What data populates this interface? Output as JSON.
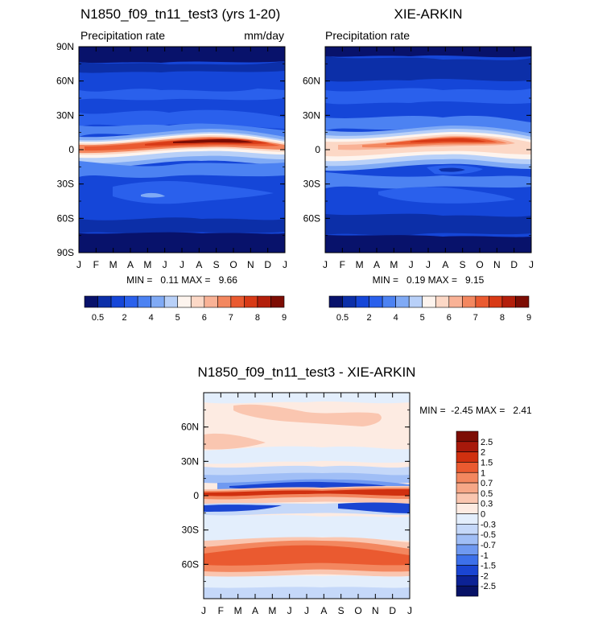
{
  "chart_data": [
    {
      "id": "model",
      "type": "heatmap",
      "title": "N1850_f09_tn11_test3 (yrs 1-20)",
      "subtitle_left": "Precipitation rate",
      "subtitle_right": "mm/day",
      "xticks": [
        "J",
        "F",
        "M",
        "A",
        "M",
        "J",
        "J",
        "A",
        "S",
        "O",
        "N",
        "D",
        "J"
      ],
      "ylabels": [
        {
          "lat": 90,
          "label": "90N"
        },
        {
          "lat": 60,
          "label": "60N"
        },
        {
          "lat": 30,
          "label": "30N"
        },
        {
          "lat": 0,
          "label": "0"
        },
        {
          "lat": -30,
          "label": "30S"
        },
        {
          "lat": -60,
          "label": "60S"
        },
        {
          "lat": -90,
          "label": "90S"
        }
      ],
      "ylim": [
        -90,
        90
      ],
      "stats_text": "MIN =   0.11 MAX =   9.66",
      "min": 0.11,
      "max": 9.66,
      "colorbar_ticks": [
        {
          "index": 1,
          "label": "0.5"
        },
        {
          "index": 3,
          "label": "2"
        },
        {
          "index": 5,
          "label": "4"
        },
        {
          "index": 7,
          "label": "5"
        },
        {
          "index": 9,
          "label": "6"
        },
        {
          "index": 11,
          "label": "7"
        },
        {
          "index": 13,
          "label": "8"
        },
        {
          "index": 15,
          "label": "9"
        }
      ]
    },
    {
      "id": "obs",
      "type": "heatmap",
      "title": "XIE-ARKIN",
      "subtitle_left": "Precipitation rate",
      "subtitle_right": "",
      "xticks": [
        "J",
        "F",
        "M",
        "A",
        "M",
        "J",
        "J",
        "A",
        "S",
        "O",
        "N",
        "D",
        "J"
      ],
      "ylabels": [
        {
          "lat": 60,
          "label": "60N"
        },
        {
          "lat": 30,
          "label": "30N"
        },
        {
          "lat": 0,
          "label": "0"
        },
        {
          "lat": -30,
          "label": "30S"
        },
        {
          "lat": -60,
          "label": "60S"
        }
      ],
      "ylim": [
        -90,
        90
      ],
      "stats_text": "MIN =   0.19 MAX =   9.15",
      "min": 0.19,
      "max": 9.15,
      "colorbar_ticks": [
        {
          "index": 1,
          "label": "0.5"
        },
        {
          "index": 3,
          "label": "2"
        },
        {
          "index": 5,
          "label": "4"
        },
        {
          "index": 7,
          "label": "5"
        },
        {
          "index": 9,
          "label": "6"
        },
        {
          "index": 11,
          "label": "7"
        },
        {
          "index": 13,
          "label": "8"
        },
        {
          "index": 15,
          "label": "9"
        }
      ]
    },
    {
      "id": "diff",
      "type": "heatmap",
      "title": "N1850_f09_tn11_test3 - XIE-ARKIN",
      "xticks": [
        "J",
        "F",
        "M",
        "A",
        "M",
        "J",
        "J",
        "A",
        "S",
        "O",
        "N",
        "D",
        "J"
      ],
      "ylabels": [
        {
          "lat": 60,
          "label": "60N"
        },
        {
          "lat": 30,
          "label": "30N"
        },
        {
          "lat": 0,
          "label": "0"
        },
        {
          "lat": -30,
          "label": "30S"
        },
        {
          "lat": -60,
          "label": "60S"
        }
      ],
      "ylim": [
        -90,
        90
      ],
      "stats_text": "MIN =  -2.45 MAX =   2.41",
      "min": -2.45,
      "max": 2.41,
      "colorbar_labels": [
        "2.5",
        "2",
        "1.5",
        "1",
        "0.7",
        "0.5",
        "0.3",
        "0",
        "-0.3",
        "-0.5",
        "-0.7",
        "-1",
        "-1.5",
        "-2",
        "-2.5"
      ]
    }
  ],
  "colors": {
    "precip_levels": [
      "#08126b",
      "#0c2fa8",
      "#1546d8",
      "#2a60ec",
      "#4c82f2",
      "#80aaf5",
      "#b8d0f8",
      "#fdf4ee",
      "#fcd8c6",
      "#f9b296",
      "#f3875f",
      "#ea5a30",
      "#d83a16",
      "#b31f0b",
      "#7d0d04"
    ],
    "diff_levels": [
      "#7d0d04",
      "#a8190b",
      "#d0300f",
      "#ea5a30",
      "#f3875f",
      "#f6a787",
      "#fac6b0",
      "#fdebe2",
      "#e3eefc",
      "#c5d8f9",
      "#a0bef6",
      "#6f99f1",
      "#3d70ea",
      "#1a45d2",
      "#0c2295",
      "#071266"
    ]
  }
}
